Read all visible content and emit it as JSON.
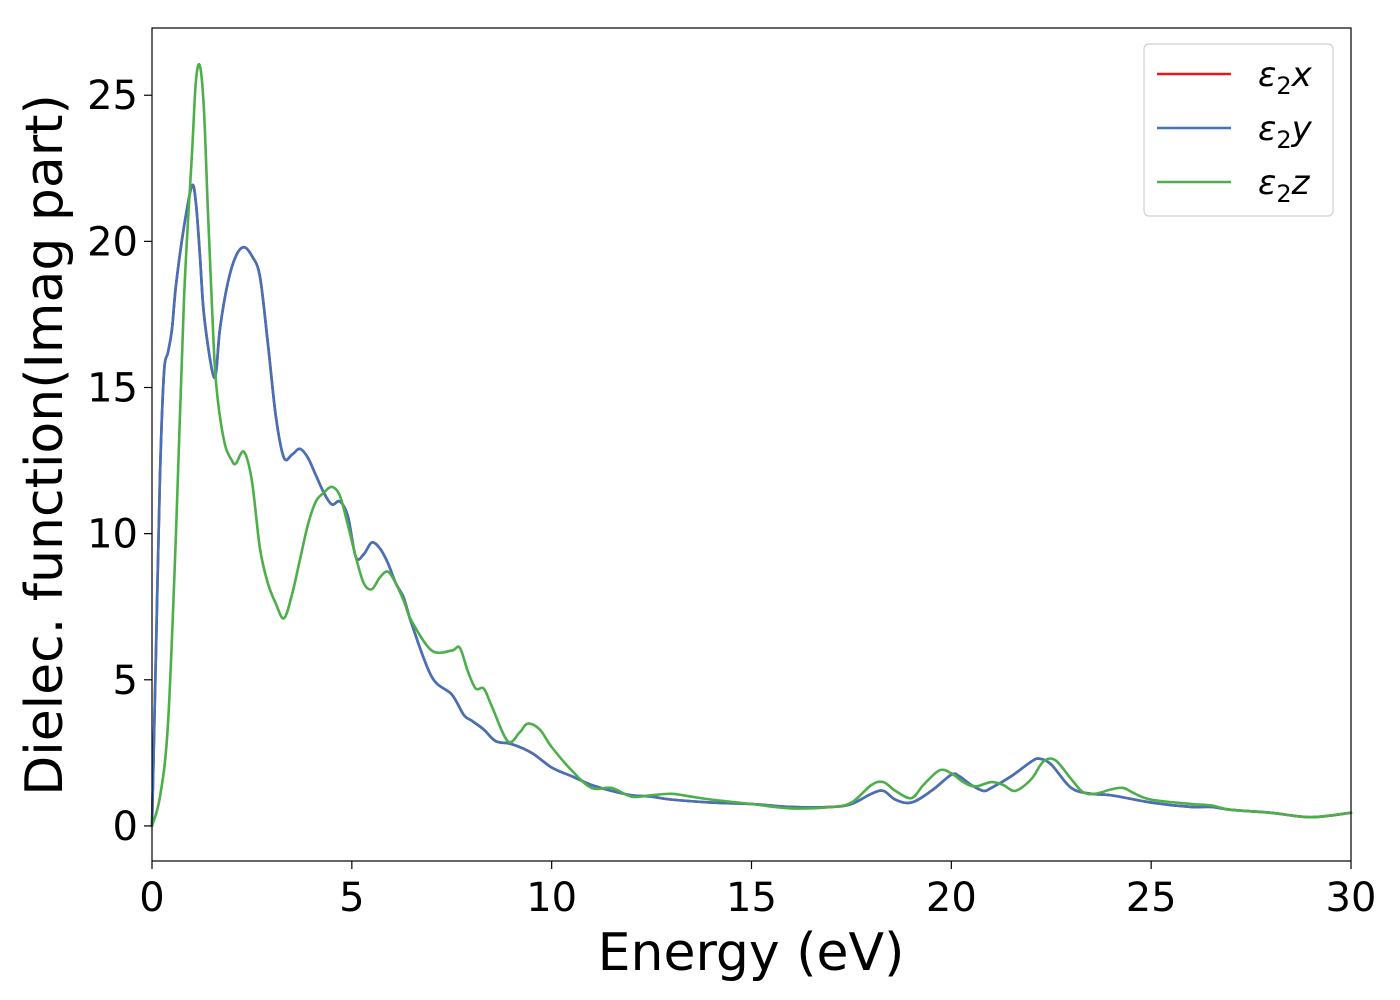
{
  "chart_data": {
    "type": "line",
    "xlabel": "Energy (eV)",
    "ylabel": "Dielec. function(Imag part)",
    "xlim": [
      0,
      30
    ],
    "ylim": [
      -1.2,
      27.3
    ],
    "xticks": [
      0,
      5,
      10,
      15,
      20,
      25,
      30
    ],
    "yticks": [
      0,
      5,
      10,
      15,
      20,
      25
    ],
    "grid": false,
    "legend_position": "top-right",
    "series": [
      {
        "name": "ε2x",
        "symbol": "ε",
        "subscript": "2",
        "axis": "x",
        "color": "#e41a1c",
        "x": [
          0,
          0.1,
          0.2,
          0.3,
          0.4,
          0.5,
          0.6,
          0.8,
          1.0,
          1.1,
          1.2,
          1.3,
          1.5,
          1.6,
          1.7,
          1.9,
          2.1,
          2.3,
          2.5,
          2.7,
          2.9,
          3.1,
          3.3,
          3.5,
          3.7,
          3.9,
          4.1,
          4.3,
          4.5,
          4.7,
          4.9,
          5.1,
          5.3,
          5.5,
          5.7,
          5.9,
          6.1,
          6.3,
          6.5,
          7.0,
          7.5,
          7.8,
          8.0,
          8.3,
          8.6,
          9.0,
          9.5,
          10.0,
          10.5,
          11.0,
          11.5,
          12.0,
          12.5,
          13.0,
          14.0,
          15.0,
          16.0,
          17.0,
          17.5,
          18.0,
          18.3,
          18.6,
          19.0,
          19.5,
          20.0,
          20.2,
          20.5,
          20.8,
          21.0,
          21.5,
          22.0,
          22.2,
          22.5,
          23.0,
          23.5,
          24.0,
          25.0,
          26.0,
          26.5,
          27.0,
          28.0,
          29.0,
          30.0
        ],
        "y": [
          0,
          6,
          12,
          15.5,
          16.2,
          17,
          18.5,
          20.5,
          21.9,
          21.3,
          19.5,
          17.5,
          15.6,
          15.5,
          17,
          18.6,
          19.5,
          19.8,
          19.5,
          18.8,
          16.5,
          14,
          12.6,
          12.7,
          12.9,
          12.6,
          12,
          11.4,
          11,
          11.1,
          10.6,
          9.2,
          9.3,
          9.7,
          9.5,
          9,
          8.3,
          7.8,
          6.9,
          5.1,
          4.5,
          3.8,
          3.6,
          3.3,
          2.9,
          2.8,
          2.5,
          2,
          1.7,
          1.4,
          1.2,
          1.05,
          1,
          0.9,
          0.8,
          0.75,
          0.65,
          0.65,
          0.75,
          1.1,
          1.2,
          0.9,
          0.8,
          1.2,
          1.75,
          1.7,
          1.4,
          1.2,
          1.3,
          1.7,
          2.2,
          2.3,
          2.1,
          1.3,
          1.1,
          1.05,
          0.8,
          0.65,
          0.65,
          0.55,
          0.45,
          0.3,
          0.45
        ]
      },
      {
        "name": "ε2y",
        "symbol": "ε",
        "subscript": "2",
        "axis": "y",
        "color": "#4472b8",
        "x": [
          0,
          0.1,
          0.2,
          0.3,
          0.4,
          0.5,
          0.6,
          0.8,
          1.0,
          1.1,
          1.2,
          1.3,
          1.5,
          1.6,
          1.7,
          1.9,
          2.1,
          2.3,
          2.5,
          2.7,
          2.9,
          3.1,
          3.3,
          3.5,
          3.7,
          3.9,
          4.1,
          4.3,
          4.5,
          4.7,
          4.9,
          5.1,
          5.3,
          5.5,
          5.7,
          5.9,
          6.1,
          6.3,
          6.5,
          7.0,
          7.5,
          7.8,
          8.0,
          8.3,
          8.6,
          9.0,
          9.5,
          10.0,
          10.5,
          11.0,
          11.5,
          12.0,
          12.5,
          13.0,
          14.0,
          15.0,
          16.0,
          17.0,
          17.5,
          18.0,
          18.3,
          18.6,
          19.0,
          19.5,
          20.0,
          20.2,
          20.5,
          20.8,
          21.0,
          21.5,
          22.0,
          22.2,
          22.5,
          23.0,
          23.5,
          24.0,
          25.0,
          26.0,
          26.5,
          27.0,
          28.0,
          29.0,
          30.0
        ],
        "y": [
          0,
          6,
          12,
          15.5,
          16.2,
          17,
          18.5,
          20.5,
          21.9,
          21.3,
          19.5,
          17.5,
          15.6,
          15.5,
          17,
          18.6,
          19.5,
          19.8,
          19.5,
          18.8,
          16.5,
          14,
          12.6,
          12.7,
          12.9,
          12.6,
          12,
          11.4,
          11,
          11.1,
          10.6,
          9.2,
          9.3,
          9.7,
          9.5,
          9,
          8.3,
          7.8,
          6.9,
          5.1,
          4.5,
          3.8,
          3.6,
          3.3,
          2.9,
          2.8,
          2.5,
          2,
          1.7,
          1.4,
          1.2,
          1.05,
          1,
          0.9,
          0.8,
          0.75,
          0.65,
          0.65,
          0.75,
          1.1,
          1.2,
          0.9,
          0.8,
          1.2,
          1.75,
          1.7,
          1.4,
          1.2,
          1.3,
          1.7,
          2.2,
          2.3,
          2.1,
          1.3,
          1.1,
          1.05,
          0.8,
          0.65,
          0.65,
          0.55,
          0.45,
          0.3,
          0.45
        ]
      },
      {
        "name": "ε2z",
        "symbol": "ε",
        "subscript": "2",
        "axis": "z",
        "color": "#4daf4a",
        "x": [
          0,
          0.2,
          0.4,
          0.6,
          0.8,
          1.0,
          1.1,
          1.2,
          1.3,
          1.4,
          1.5,
          1.6,
          1.8,
          2.0,
          2.1,
          2.3,
          2.5,
          2.7,
          2.9,
          3.1,
          3.3,
          3.5,
          3.7,
          3.9,
          4.1,
          4.3,
          4.5,
          4.7,
          4.9,
          5.1,
          5.3,
          5.5,
          5.7,
          5.9,
          6.1,
          6.3,
          6.5,
          7.0,
          7.5,
          7.7,
          7.9,
          8.1,
          8.3,
          8.5,
          8.9,
          9.2,
          9.4,
          9.7,
          10.0,
          10.5,
          11.0,
          11.5,
          12.0,
          12.5,
          13.0,
          13.5,
          14.0,
          15.0,
          16.0,
          17.0,
          17.5,
          18.0,
          18.3,
          18.6,
          19.0,
          19.3,
          19.7,
          20.0,
          20.3,
          20.6,
          21.0,
          21.3,
          21.6,
          22.0,
          22.3,
          22.6,
          23.0,
          23.3,
          23.6,
          24.0,
          24.3,
          24.6,
          25.0,
          26.0,
          26.5,
          27.0,
          28.0,
          29.0,
          30.0
        ],
        "y": [
          0,
          1,
          3.5,
          10,
          18,
          23,
          25.5,
          26,
          24.5,
          21,
          17.8,
          15.2,
          13.2,
          12.5,
          12.4,
          12.8,
          11.8,
          9.5,
          8.3,
          7.6,
          7.1,
          7.9,
          9.1,
          10.3,
          11.1,
          11.4,
          11.6,
          11.3,
          10.3,
          9.2,
          8.3,
          8.1,
          8.5,
          8.7,
          8.3,
          7.7,
          7,
          6,
          6,
          6.1,
          5.3,
          4.7,
          4.7,
          4.1,
          2.9,
          3.2,
          3.5,
          3.3,
          2.7,
          1.9,
          1.3,
          1.3,
          1,
          1.05,
          1.1,
          1,
          0.9,
          0.75,
          0.6,
          0.65,
          0.8,
          1.4,
          1.5,
          1.2,
          0.95,
          1.4,
          1.9,
          1.8,
          1.5,
          1.35,
          1.5,
          1.4,
          1.2,
          1.6,
          2.2,
          2.25,
          1.6,
          1.15,
          1.1,
          1.25,
          1.3,
          1.1,
          0.9,
          0.75,
          0.7,
          0.55,
          0.45,
          0.3,
          0.45
        ]
      }
    ]
  }
}
